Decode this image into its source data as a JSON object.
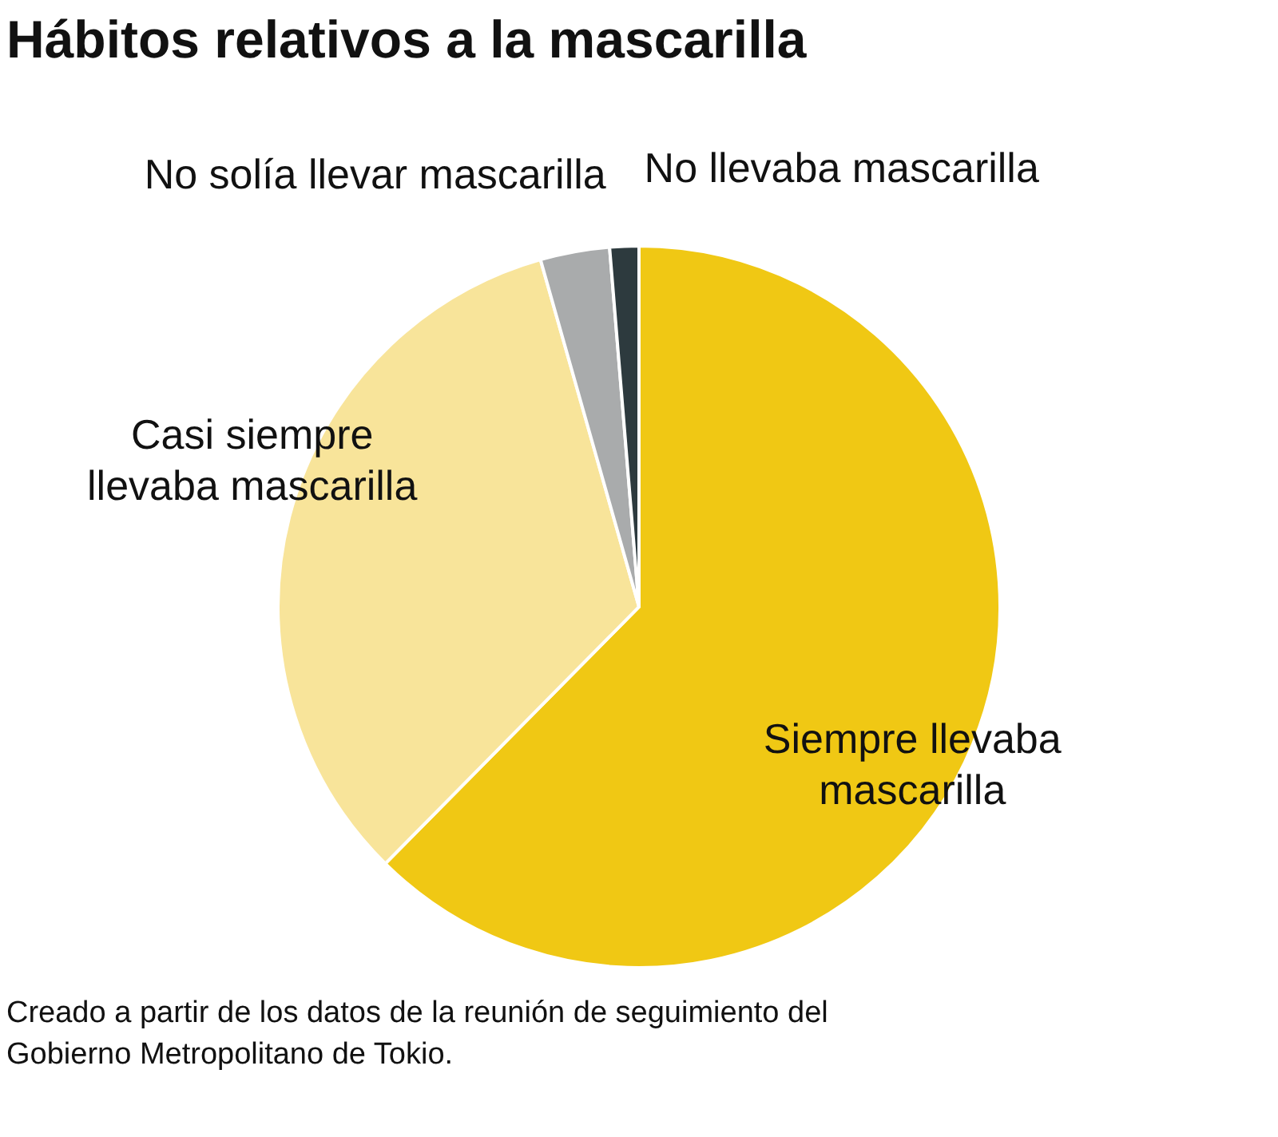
{
  "chart_data": {
    "type": "pie",
    "title": "Hábitos relativos a la mascarilla",
    "categories": [
      "Siempre llevaba mascarilla",
      "Casi siempre llevaba mascarilla",
      "No solía llevar mascarilla",
      "No llevaba mascarilla"
    ],
    "values": [
      62.4,
      33.2,
      3.1,
      1.3
    ],
    "colors": [
      "#f0c814",
      "#f8e49a",
      "#a9abac",
      "#2d3a3e"
    ],
    "annotations": [
      "Creado a partir de los datos de la reunión de seguimiento del Gobierno Metropolitano de Tokio."
    ]
  }
}
